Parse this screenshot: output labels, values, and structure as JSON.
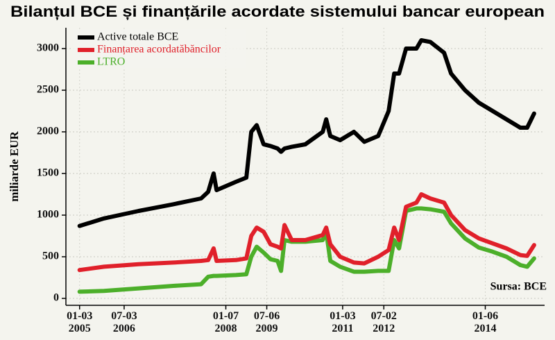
{
  "chart_data": {
    "type": "line",
    "title": "Bilanțul BCE și finanțările acordate sistemului bancar european",
    "y_label": "miliarde EUR",
    "annotation": "Sursa: BCE",
    "x": [
      "2005-03-01",
      "2005-09-20",
      "2006-07-06",
      "2007-04-20",
      "2007-12-08",
      "2008-02-05",
      "2008-03-21",
      "2008-04-15",
      "2008-09-23",
      "2008-12-19",
      "2009-01-29",
      "2009-03-15",
      "2009-05-12",
      "2009-07-08",
      "2009-09-05",
      "2009-10-04",
      "2009-11-02",
      "2010-01-01",
      "2010-04-24",
      "2010-09-16",
      "2010-10-15",
      "2010-11-18",
      "2011-02-08",
      "2011-06-03",
      "2011-08-28",
      "2011-12-22",
      "2012-03-18",
      "2012-05-03",
      "2012-06-13",
      "2012-08-10",
      "2012-11-05",
      "2012-12-15",
      "2013-02-28",
      "2013-06-23",
      "2013-08-20",
      "2013-12-14",
      "2014-04-08",
      "2014-08-02",
      "2014-11-25",
      "2015-03-20",
      "2015-05-16",
      "2015-07-13"
    ],
    "series": [
      {
        "name": "Active totale BCE",
        "color": "#000000",
        "values": [
          870,
          960,
          1050,
          1130,
          1200,
          1280,
          1500,
          1300,
          1400,
          1450,
          2000,
          2080,
          1850,
          1830,
          1800,
          1760,
          1800,
          1820,
          1850,
          2000,
          2150,
          1950,
          1900,
          2000,
          1880,
          1950,
          2250,
          2700,
          2700,
          3000,
          3000,
          3100,
          3080,
          2950,
          2700,
          2500,
          2350,
          2250,
          2150,
          2050,
          2050,
          2220
        ]
      },
      {
        "name": "Finanțarea acordatăbăncilor",
        "color": "#e0202a",
        "values": [
          340,
          380,
          410,
          430,
          450,
          460,
          600,
          450,
          460,
          480,
          750,
          850,
          800,
          650,
          620,
          600,
          880,
          700,
          700,
          760,
          850,
          650,
          500,
          430,
          420,
          500,
          580,
          850,
          700,
          1100,
          1150,
          1250,
          1200,
          1150,
          1000,
          820,
          720,
          660,
          600,
          520,
          510,
          640
        ]
      },
      {
        "name": "LTRO",
        "color": "#4caf2a",
        "values": [
          80,
          90,
          120,
          150,
          170,
          260,
          270,
          270,
          280,
          290,
          500,
          620,
          550,
          470,
          450,
          330,
          700,
          680,
          680,
          700,
          800,
          450,
          380,
          320,
          320,
          330,
          330,
          700,
          600,
          1050,
          1080,
          1080,
          1070,
          1040,
          900,
          720,
          610,
          560,
          500,
          400,
          380,
          480
        ]
      }
    ],
    "xlim": [
      "2004-11-07",
      "2015-10-08"
    ],
    "xticks": [
      {
        "value": "2005-03-01",
        "label": "01-03 2005"
      },
      {
        "value": "2006-03-07",
        "label": "07-03 2006"
      },
      {
        "value": "2008-07-01",
        "label": "01-07 2008"
      },
      {
        "value": "2009-06-07",
        "label": "07-06 2009"
      },
      {
        "value": "2011-03-01",
        "label": "01-03 2011"
      },
      {
        "value": "2012-02-07",
        "label": "07-02 2012"
      },
      {
        "value": "2014-06-01",
        "label": "01-06 2014"
      }
    ],
    "ylim": [
      -83,
      3250
    ],
    "yticks": [
      0,
      500,
      1000,
      1500,
      2000,
      2500,
      3000
    ],
    "grid": true
  }
}
